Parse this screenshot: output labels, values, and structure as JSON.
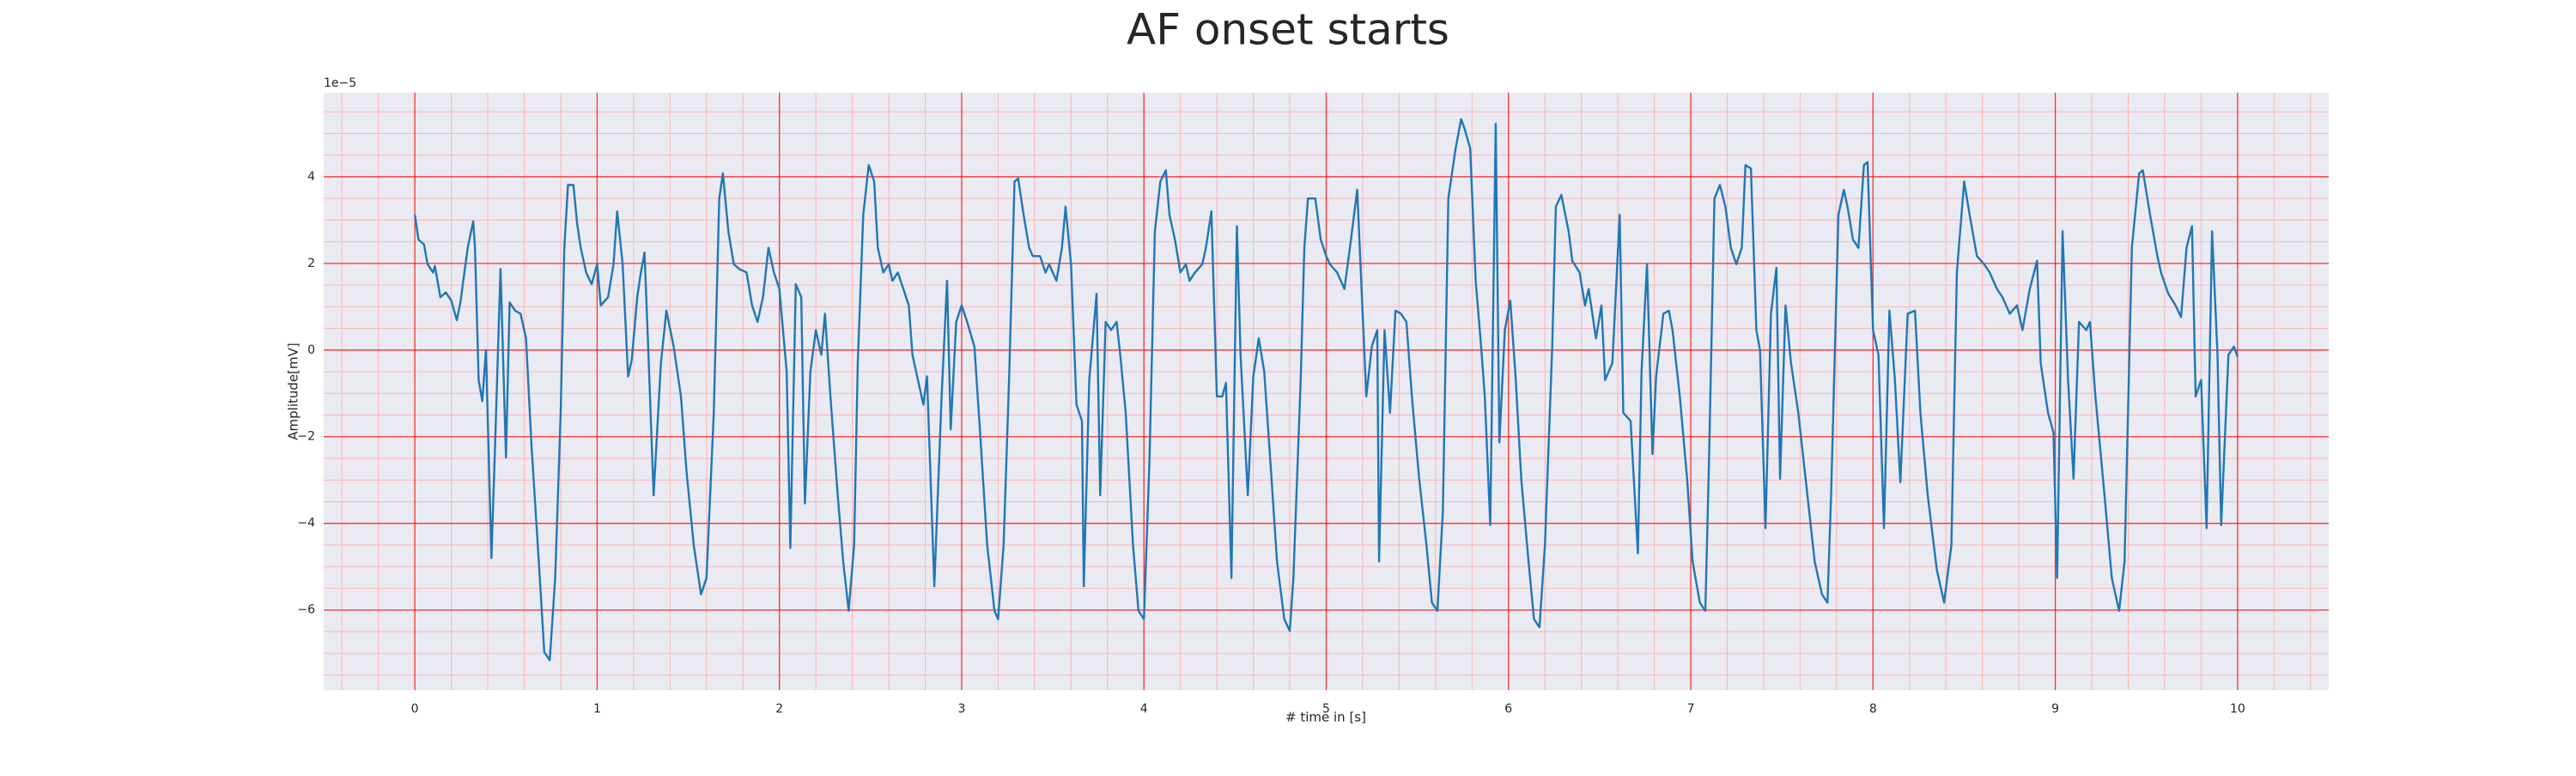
{
  "chart_data": {
    "type": "line",
    "title": "AF onset starts",
    "x_label": "# time in [s]",
    "y_label": "Amplitude[mV]",
    "y_offset_label": "1e−5",
    "xlim": [
      -0.5,
      10.5
    ],
    "ylim": [
      -7.85,
      5.94
    ],
    "xticks": [
      0,
      1,
      2,
      3,
      4,
      5,
      6,
      7,
      8,
      9,
      10
    ],
    "yticks": [
      {
        "value": -6,
        "label": "−6"
      },
      {
        "value": -4,
        "label": "−4"
      },
      {
        "value": -2,
        "label": "−2"
      },
      0,
      2,
      4
    ],
    "grid": true,
    "minor_grid": true,
    "grid_color": "#ff0000",
    "minor_grid_color": "#ffb3b3",
    "facecolor": "#eaeaf2",
    "series": [
      {
        "color": "#1f77b4",
        "x": [
          0,
          0.02,
          0.05,
          0.07,
          0.1,
          0.11,
          0.14,
          0.17,
          0.2,
          0.23,
          0.25,
          0.29,
          0.32,
          0.33,
          0.35,
          0.37,
          0.39,
          0.42,
          0.44,
          0.47,
          0.5,
          0.52,
          0.55,
          0.58,
          0.61,
          0.64,
          0.68,
          0.71,
          0.74,
          0.77,
          0.8,
          0.82,
          0.84,
          0.87,
          0.89,
          0.91,
          0.94,
          0.97,
          1.0,
          1.02,
          1.06,
          1.09,
          1.11,
          1.14,
          1.17,
          1.19,
          1.22,
          1.24,
          1.26,
          1.28,
          1.31,
          1.35,
          1.38,
          1.42,
          1.46,
          1.49,
          1.53,
          1.57,
          1.6,
          1.64,
          1.67,
          1.69,
          1.72,
          1.75,
          1.78,
          1.82,
          1.85,
          1.88,
          1.91,
          1.94,
          1.97,
          2.0,
          2.04,
          2.06,
          2.09,
          2.12,
          2.14,
          2.17,
          2.2,
          2.23,
          2.25,
          2.28,
          2.32,
          2.35,
          2.38,
          2.41,
          2.43,
          2.46,
          2.49,
          2.52,
          2.54,
          2.57,
          2.6,
          2.62,
          2.65,
          2.68,
          2.71,
          2.73,
          2.76,
          2.79,
          2.81,
          2.85,
          2.89,
          2.92,
          2.94,
          2.97,
          3.0,
          3.03,
          3.07,
          3.1,
          3.14,
          3.18,
          3.2,
          3.23,
          3.26,
          3.29,
          3.31,
          3.34,
          3.37,
          3.39,
          3.43,
          3.46,
          3.48,
          3.52,
          3.55,
          3.57,
          3.6,
          3.63,
          3.66,
          3.67,
          3.7,
          3.74,
          3.76,
          3.79,
          3.82,
          3.85,
          3.87,
          3.9,
          3.94,
          3.97,
          4.0,
          4.03,
          4.06,
          4.09,
          4.12,
          4.14,
          4.17,
          4.2,
          4.23,
          4.25,
          4.28,
          4.32,
          4.34,
          4.37,
          4.4,
          4.43,
          4.45,
          4.48,
          4.51,
          4.53,
          4.57,
          4.6,
          4.63,
          4.66,
          4.7,
          4.73,
          4.77,
          4.8,
          4.82,
          4.86,
          4.88,
          4.9,
          4.94,
          4.97,
          5.0,
          5.02,
          5.06,
          5.1,
          5.13,
          5.17,
          5.19,
          5.22,
          5.25,
          5.28,
          5.29,
          5.32,
          5.35,
          5.38,
          5.41,
          5.44,
          5.47,
          5.51,
          5.55,
          5.58,
          5.61,
          5.64,
          5.67,
          5.71,
          5.74,
          5.76,
          5.79,
          5.82,
          5.85,
          5.87,
          5.9,
          5.93,
          5.95,
          5.98,
          6.01,
          6.04,
          6.07,
          6.11,
          6.14,
          6.17,
          6.2,
          6.24,
          6.26,
          6.29,
          6.33,
          6.35,
          6.39,
          6.42,
          6.44,
          6.48,
          6.51,
          6.53,
          6.57,
          6.61,
          6.63,
          6.67,
          6.71,
          6.73,
          6.76,
          6.79,
          6.81,
          6.85,
          6.88,
          6.9,
          6.94,
          6.98,
          7.01,
          7.05,
          7.08,
          7.1,
          7.13,
          7.16,
          7.19,
          7.22,
          7.25,
          7.28,
          7.3,
          7.33,
          7.36,
          7.38,
          7.41,
          7.44,
          7.47,
          7.49,
          7.52,
          7.55,
          7.59,
          7.64,
          7.68,
          7.72,
          7.75,
          7.77,
          7.81,
          7.84,
          7.86,
          7.89,
          7.92,
          7.95,
          7.97,
          8.0,
          8.03,
          8.06,
          8.09,
          8.12,
          8.15,
          8.19,
          8.23,
          8.26,
          8.3,
          8.35,
          8.39,
          8.43,
          8.46,
          8.5,
          8.53,
          8.57,
          8.61,
          8.64,
          8.68,
          8.71,
          8.75,
          8.79,
          8.82,
          8.86,
          8.9,
          8.92,
          8.96,
          8.99,
          9.01,
          9.04,
          9.07,
          9.1,
          9.13,
          9.17,
          9.19,
          9.22,
          9.27,
          9.31,
          9.35,
          9.38,
          9.42,
          9.46,
          9.48,
          9.52,
          9.56,
          9.58,
          9.62,
          9.66,
          9.69,
          9.72,
          9.75,
          9.77,
          9.8,
          9.83,
          9.86,
          9.89,
          9.91,
          9.95,
          9.98,
          10.0
        ],
        "values": [
          3.12,
          2.55,
          2.44,
          1.98,
          1.79,
          1.94,
          1.22,
          1.33,
          1.14,
          0.69,
          1.1,
          2.36,
          2.97,
          2.36,
          -0.69,
          -1.18,
          0,
          -4.8,
          -2.21,
          1.87,
          -2.48,
          1.1,
          0.91,
          0.84,
          0.27,
          -2.21,
          -4.88,
          -6.97,
          -7.16,
          -5.26,
          -1.45,
          2.36,
          3.81,
          3.81,
          2.93,
          2.36,
          1.79,
          1.52,
          1.98,
          1.03,
          1.22,
          1.98,
          3.2,
          1.98,
          -0.61,
          -0.23,
          1.22,
          1.79,
          2.25,
          0.08,
          -3.35,
          -0.3,
          0.91,
          0.08,
          -1.07,
          -2.78,
          -4.5,
          -5.64,
          -5.26,
          -1.45,
          3.5,
          4.08,
          2.74,
          1.98,
          1.87,
          1.79,
          1.03,
          0.65,
          1.22,
          2.36,
          1.79,
          1.41,
          -0.5,
          -4.57,
          1.52,
          1.22,
          -3.54,
          -0.5,
          0.46,
          -0.11,
          0.84,
          -1.07,
          -3.35,
          -4.88,
          -6.02,
          -4.5,
          -0.3,
          3.12,
          4.27,
          3.89,
          2.36,
          1.79,
          1.98,
          1.6,
          1.79,
          1.41,
          1.03,
          -0.11,
          -0.69,
          -1.26,
          -0.61,
          -5.45,
          -1.07,
          1.6,
          -1.83,
          0.65,
          1.03,
          0.65,
          0.08,
          -1.83,
          -4.5,
          -6.02,
          -6.21,
          -4.5,
          -0.69,
          3.89,
          3.96,
          3.12,
          2.36,
          2.17,
          2.17,
          1.79,
          1.98,
          1.6,
          2.36,
          3.31,
          1.98,
          -1.26,
          -1.64,
          -5.45,
          -0.69,
          1.3,
          -3.35,
          0.65,
          0.46,
          0.65,
          -0.11,
          -1.45,
          -4.5,
          -6.02,
          -6.21,
          -2.59,
          2.74,
          3.89,
          4.15,
          3.12,
          2.55,
          1.79,
          1.98,
          1.6,
          1.79,
          1.98,
          2.36,
          3.2,
          -1.07,
          -1.07,
          -0.76,
          -5.26,
          2.86,
          -0.11,
          -3.35,
          -0.61,
          0.27,
          -0.5,
          -2.97,
          -4.88,
          -6.21,
          -6.48,
          -5.26,
          -0.69,
          2.36,
          3.5,
          3.5,
          2.55,
          2.17,
          1.98,
          1.79,
          1.41,
          2.36,
          3.7,
          1.79,
          -1.07,
          0.08,
          0.46,
          -4.88,
          0.46,
          -1.45,
          0.91,
          0.84,
          0.65,
          -1.07,
          -2.97,
          -4.5,
          -5.83,
          -6.02,
          -3.73,
          3.5,
          4.65,
          5.33,
          5.1,
          4.65,
          1.6,
          0.08,
          -1.07,
          -4.04,
          5.22,
          -2.13,
          0.46,
          1.14,
          -0.69,
          -2.97,
          -4.88,
          -6.21,
          -6.4,
          -4.5,
          0.08,
          3.31,
          3.58,
          2.74,
          2.06,
          1.79,
          1.03,
          1.41,
          0.27,
          1.03,
          -0.69,
          -0.3,
          3.12,
          -1.45,
          -1.64,
          -4.69,
          -0.5,
          1.98,
          -2.4,
          -0.61,
          0.84,
          0.91,
          0.46,
          -1.07,
          -2.97,
          -4.88,
          -5.83,
          -6.02,
          -2.59,
          3.5,
          3.81,
          3.31,
          2.36,
          1.98,
          2.36,
          4.27,
          4.19,
          0.46,
          0,
          -4.11,
          0.84,
          1.9,
          -2.97,
          1.03,
          -0.3,
          -1.45,
          -3.35,
          -4.88,
          -5.64,
          -5.83,
          -3.35,
          3.12,
          3.7,
          3.31,
          2.55,
          2.36,
          4.27,
          4.34,
          0.46,
          -0.11,
          -4.11,
          0.91,
          -0.69,
          -3.05,
          0.84,
          0.91,
          -1.45,
          -3.35,
          -5.07,
          -5.83,
          -4.5,
          1.79,
          3.89,
          3.12,
          2.17,
          1.98,
          1.79,
          1.41,
          1.22,
          0.84,
          1.03,
          0.46,
          1.41,
          2.06,
          -0.3,
          -1.45,
          -1.9,
          -5.26,
          2.74,
          -0.69,
          -2.97,
          0.65,
          0.46,
          0.65,
          -1.07,
          -3.35,
          -5.26,
          -6.02,
          -4.88,
          2.36,
          4.08,
          4.15,
          3.12,
          2.17,
          1.79,
          1.3,
          1.03,
          0.76,
          2.36,
          2.86,
          -1.07,
          -0.69,
          -4.11,
          2.74,
          -0.11,
          -4.04,
          -0.11,
          0.08,
          -0.15
        ]
      }
    ]
  }
}
